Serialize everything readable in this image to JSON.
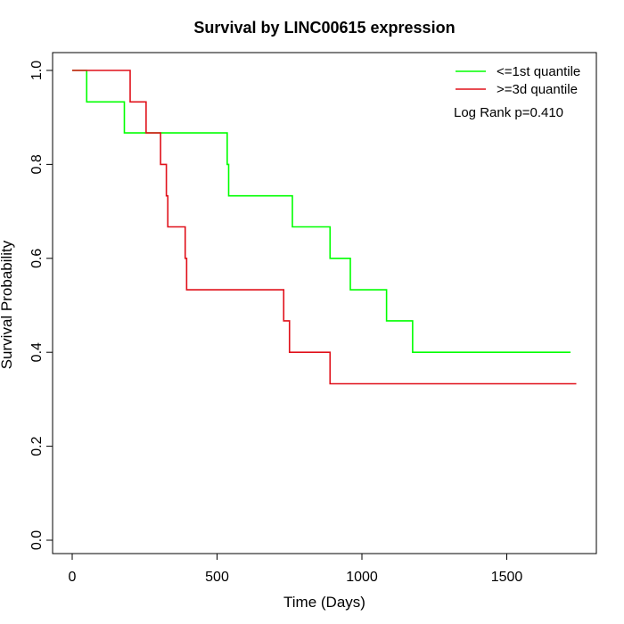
{
  "chart_data": {
    "type": "line",
    "title": "Survival by LINC00615 expression",
    "xlabel": "Time (Days)",
    "ylabel": "Survival Probability",
    "xlim": [
      0,
      1800
    ],
    "ylim": [
      0,
      1
    ],
    "x_ticks": [
      "0",
      "500",
      "1000",
      "1500"
    ],
    "x_tick_values": [
      0,
      500,
      1000,
      1500
    ],
    "y_ticks": [
      "0.0",
      "0.2",
      "0.4",
      "0.6",
      "0.8",
      "1.0"
    ],
    "y_tick_values": [
      0,
      0.2,
      0.4,
      0.6,
      0.8,
      1.0
    ],
    "grid": false,
    "legend_position": "top-right",
    "annotation": "Log Rank p=0.410",
    "series": [
      {
        "name": "<=1st quantile",
        "color": "#00ff00",
        "step": true,
        "x": [
          0,
          50,
          180,
          535,
          540,
          760,
          890,
          960,
          1085,
          1175,
          1720
        ],
        "y": [
          1.0,
          0.933,
          0.867,
          0.8,
          0.733,
          0.667,
          0.6,
          0.533,
          0.467,
          0.4,
          0.4
        ]
      },
      {
        "name": ">=3d quantile",
        "color": "#e0101a",
        "step": true,
        "x": [
          0,
          200,
          255,
          305,
          325,
          330,
          390,
          395,
          730,
          750,
          890,
          1740
        ],
        "y": [
          1.0,
          0.933,
          0.867,
          0.8,
          0.733,
          0.667,
          0.6,
          0.533,
          0.467,
          0.4,
          0.333,
          0.333
        ]
      }
    ]
  }
}
